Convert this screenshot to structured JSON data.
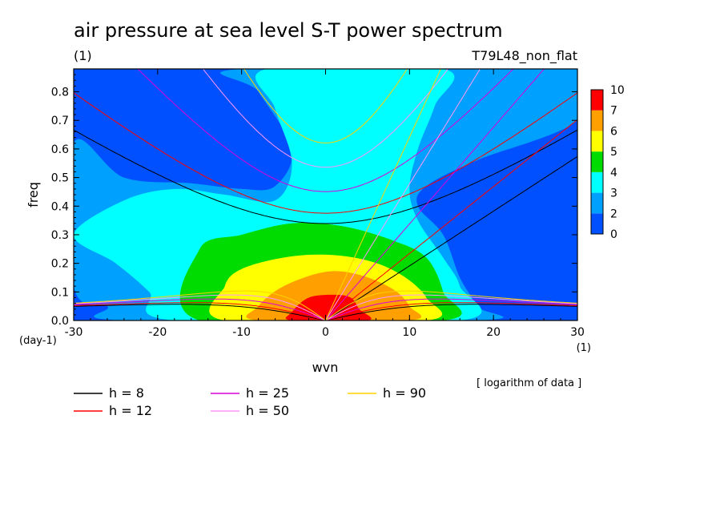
{
  "title": "air pressure at sea level S-T power spectrum",
  "title_unit": "(1)",
  "model_label": "T79L48_non_flat",
  "chart_data": {
    "type": "heatmap",
    "title": "air pressure at sea level S-T power spectrum",
    "xlabel": "wvn",
    "ylabel": "freq",
    "x_unit": "(1)",
    "y_unit": "(day-1)",
    "xlim": [
      -30,
      30
    ],
    "ylim": [
      0,
      0.88
    ],
    "x_ticks": [
      -30,
      -20,
      -10,
      0,
      10,
      20,
      30
    ],
    "x_tick_labels": [
      "-30",
      "-20",
      "-10",
      "0",
      "10",
      "20",
      "30"
    ],
    "y_ticks": [
      0.0,
      0.1,
      0.2,
      0.3,
      0.4,
      0.5,
      0.6,
      0.7,
      0.8
    ],
    "y_tick_labels": [
      "0.0",
      "0.1",
      "0.2",
      "0.3",
      "0.4",
      "0.5",
      "0.6",
      "0.7",
      "0.8"
    ],
    "note": "[ logarithm of data ]",
    "colorbar": {
      "levels": [
        "0",
        "2",
        "3",
        "4",
        "5",
        "6",
        "7",
        "10"
      ],
      "colors": [
        "#0050ff",
        "#00a0ff",
        "#00ffff",
        "#00dc00",
        "#ffff00",
        "#ffa000",
        "#ff0000"
      ]
    },
    "contour_regions": [
      {
        "level": 2,
        "color": "#00a0ff",
        "polygon": [
          [
            -30,
            0.62
          ],
          [
            -24,
            0.5
          ],
          [
            -16,
            0.48
          ],
          [
            -10,
            0.46
          ],
          [
            -6,
            0.47
          ],
          [
            -4,
            0.6
          ],
          [
            -8,
            0.8
          ],
          [
            -10,
            0.88
          ],
          [
            30,
            0.88
          ],
          [
            30,
            0.7
          ],
          [
            18,
            0.56
          ],
          [
            12,
            0.47
          ],
          [
            11,
            0.4
          ],
          [
            14,
            0.3
          ],
          [
            16,
            0.15
          ],
          [
            18,
            0.05
          ],
          [
            18,
            0
          ],
          [
            -24,
            0
          ],
          [
            -26,
            0.05
          ],
          [
            -30,
            0.12
          ]
        ]
      },
      {
        "level": 3,
        "color": "#00ffff",
        "polygon": [
          [
            -30,
            0.3
          ],
          [
            -24,
            0.42
          ],
          [
            -18,
            0.46
          ],
          [
            -12,
            0.44
          ],
          [
            -6,
            0.42
          ],
          [
            -4,
            0.55
          ],
          [
            -6,
            0.74
          ],
          [
            -7,
            0.88
          ],
          [
            14,
            0.88
          ],
          [
            13,
            0.75
          ],
          [
            11,
            0.6
          ],
          [
            10,
            0.46
          ],
          [
            11,
            0.35
          ],
          [
            14,
            0.22
          ],
          [
            16,
            0.12
          ],
          [
            16,
            0
          ],
          [
            -18,
            0
          ],
          [
            -21,
            0.1
          ],
          [
            -25,
            0.2
          ]
        ]
      },
      {
        "level": 4,
        "color": "#00dc00",
        "polygon": [
          [
            -15,
            0.25
          ],
          [
            -10,
            0.3
          ],
          [
            -4,
            0.34
          ],
          [
            2,
            0.33
          ],
          [
            8,
            0.28
          ],
          [
            12,
            0.22
          ],
          [
            14,
            0.1
          ],
          [
            14,
            0
          ],
          [
            -15,
            0
          ]
        ]
      },
      {
        "level": 5,
        "color": "#ffff00",
        "polygon": [
          [
            -12,
            0.12
          ],
          [
            -10,
            0.18
          ],
          [
            -5,
            0.22
          ],
          [
            0,
            0.23
          ],
          [
            5,
            0.21
          ],
          [
            9,
            0.16
          ],
          [
            12,
            0.08
          ],
          [
            12,
            0
          ],
          [
            -12,
            0
          ]
        ]
      },
      {
        "level": 6,
        "color": "#ffa000",
        "polygon": [
          [
            -8,
            0.05
          ],
          [
            -5,
            0.12
          ],
          [
            0,
            0.17
          ],
          [
            4,
            0.16
          ],
          [
            8,
            0.11
          ],
          [
            10,
            0.05
          ],
          [
            10,
            0
          ],
          [
            -8,
            0
          ]
        ]
      },
      {
        "level": 7,
        "color": "#ff0000",
        "polygon": [
          [
            -4,
            0.03
          ],
          [
            -2,
            0.08
          ],
          [
            1,
            0.09
          ],
          [
            3,
            0.08
          ],
          [
            4,
            0.04
          ],
          [
            5,
            0
          ],
          [
            -4,
            0
          ]
        ]
      }
    ],
    "curves": [
      {
        "name": "h = 8",
        "h": 8,
        "color": "#000000"
      },
      {
        "name": "h = 12",
        "h": 12,
        "color": "#ff0000"
      },
      {
        "name": "h = 25",
        "h": 25,
        "color": "#dc00dc"
      },
      {
        "name": "h = 50",
        "h": 50,
        "color": "#ff96ff"
      },
      {
        "name": "h = 90",
        "h": 90,
        "color": "#ffd200"
      }
    ]
  }
}
